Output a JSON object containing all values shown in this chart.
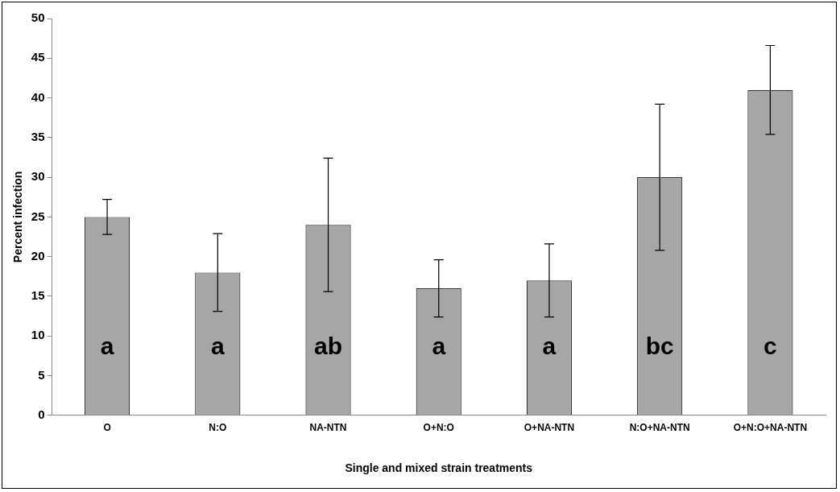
{
  "chart_data": {
    "type": "bar",
    "xlabel": "Single and mixed strain treatments",
    "ylabel": "Percent infection",
    "categories": [
      "O",
      "N:O",
      "NA-NTN",
      "O+N:O",
      "O+NA-NTN",
      "N:O+NA-NTN",
      "O+N:O+NA-NTN"
    ],
    "values": [
      25,
      18,
      24,
      16,
      17,
      30,
      41
    ],
    "errors": [
      2.2,
      4.9,
      8.4,
      3.6,
      4.6,
      9.2,
      5.6
    ],
    "color": "#a6a6a6",
    "ylim": [
      0,
      50
    ],
    "yticks": [
      0,
      5,
      10,
      15,
      20,
      25,
      30,
      35,
      40,
      45,
      50
    ],
    "grid": false,
    "legend": false,
    "annotations": [
      "a",
      "a",
      "ab",
      "a",
      "a",
      "bc",
      "c"
    ]
  }
}
